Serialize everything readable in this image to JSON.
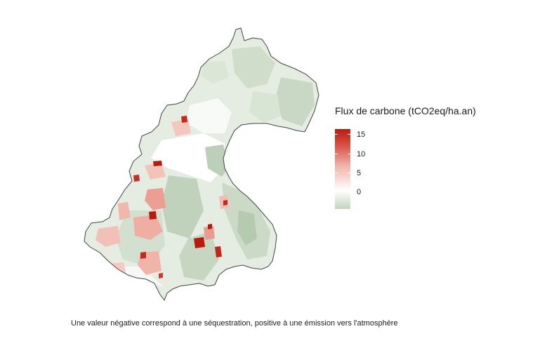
{
  "legend": {
    "title": "Flux de carbone (tCO2eq/ha.an)",
    "ticks": [
      "15",
      "10",
      "5",
      "0"
    ],
    "tick_values": [
      15,
      10,
      5,
      0
    ],
    "range": [
      -5,
      17
    ],
    "colors": {
      "negative": "#c3d4bf",
      "zero": "#ffffff",
      "mid": "#e8a39a",
      "high": "#b91a10"
    }
  },
  "caption": "Une valeur négative correspond à une séquestration, positive à une émission vers l'atmosphère",
  "map": {
    "boundary_color": "#444444",
    "land_fill": "#e5ede2",
    "patch_colors": {
      "light_green": "#d7e3d2",
      "mid_green": "#c3d4bf",
      "pale_white": "#ffffff",
      "light_red": "#f2c0b6",
      "mid_red": "#e89a8c",
      "dark_red": "#b91a10"
    }
  }
}
